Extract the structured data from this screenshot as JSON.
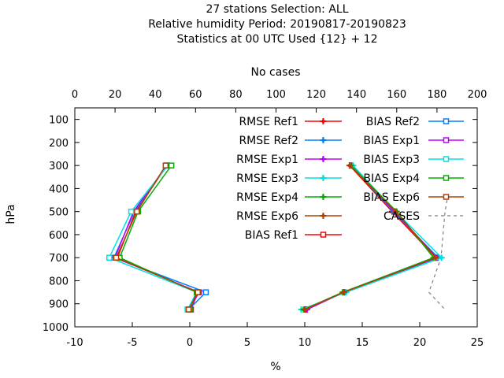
{
  "chart_data": {
    "type": "line",
    "title_lines": [
      "27 stations Selection: ALL",
      "Relative humidity  Period: 20190817-20190823",
      "Statistics at 00 UTC  Used {12} + 12"
    ],
    "xlabel": "%",
    "ylabel": "hPa",
    "x2label": "No cases",
    "xlim": [
      -10,
      25
    ],
    "x2lim": [
      0,
      200
    ],
    "ylim": [
      1000,
      50
    ],
    "y_reversed": true,
    "xticks": [
      "-10",
      "-5",
      "0",
      "5",
      "10",
      "15",
      "20",
      "25"
    ],
    "x2ticks": [
      "0",
      "20",
      "40",
      "60",
      "80",
      "100",
      "120",
      "140",
      "160",
      "180",
      "200"
    ],
    "yticks": [
      "100",
      "200",
      "300",
      "400",
      "500",
      "600",
      "700",
      "800",
      "900",
      "1000"
    ],
    "legend_position": "top-right",
    "pressure_levels": [
      300,
      500,
      700,
      850,
      925
    ],
    "series": [
      {
        "name": "RMSE Ref1",
        "color": "#ff0000",
        "marker": "filled",
        "x": [
          13.9,
          17.6,
          21.4,
          13.4,
          10.1
        ]
      },
      {
        "name": "RMSE Ref2",
        "color": "#0080ff",
        "marker": "filled",
        "x": [
          14.0,
          17.7,
          21.6,
          13.5,
          10.0
        ]
      },
      {
        "name": "RMSE Exp1",
        "color": "#c000ff",
        "marker": "filled",
        "x": [
          14.1,
          17.8,
          21.5,
          13.4,
          10.2
        ]
      },
      {
        "name": "RMSE Exp3",
        "color": "#00e0e0",
        "marker": "filled",
        "x": [
          14.2,
          17.9,
          21.9,
          13.6,
          9.7
        ]
      },
      {
        "name": "RMSE Exp4",
        "color": "#00b000",
        "marker": "filled",
        "x": [
          14.0,
          18.0,
          21.2,
          13.3,
          9.9
        ]
      },
      {
        "name": "RMSE Exp6",
        "color": "#b04000",
        "marker": "filled",
        "x": [
          13.9,
          17.9,
          21.4,
          13.4,
          10.0
        ]
      },
      {
        "name": "BIAS Ref1",
        "color": "#ff0000",
        "marker": "open",
        "x": [
          -2.0,
          -4.7,
          -6.3,
          0.7,
          0.1
        ]
      },
      {
        "name": "BIAS Ref2",
        "color": "#0080ff",
        "marker": "open",
        "x": [
          -2.0,
          -4.8,
          -6.6,
          1.4,
          -0.1
        ]
      },
      {
        "name": "BIAS Exp1",
        "color": "#c000ff",
        "marker": "open",
        "x": [
          -2.0,
          -4.9,
          -6.5,
          0.8,
          0.0
        ]
      },
      {
        "name": "BIAS Exp3",
        "color": "#00e0e0",
        "marker": "open",
        "x": [
          -1.9,
          -5.1,
          -7.0,
          0.6,
          -0.2
        ]
      },
      {
        "name": "BIAS Exp4",
        "color": "#00b000",
        "marker": "open",
        "x": [
          -1.6,
          -4.5,
          -6.1,
          0.6,
          0.0
        ]
      },
      {
        "name": "BIAS Exp6",
        "color": "#b04000",
        "marker": "open",
        "x": [
          -2.1,
          -4.6,
          -6.4,
          0.7,
          -0.1
        ]
      }
    ],
    "cases": {
      "name": "CASES",
      "color": "#808080",
      "levels": [
        450,
        500,
        600,
        700,
        850,
        925
      ],
      "x2": [
        185,
        184,
        183,
        182,
        176,
        184
      ]
    }
  }
}
